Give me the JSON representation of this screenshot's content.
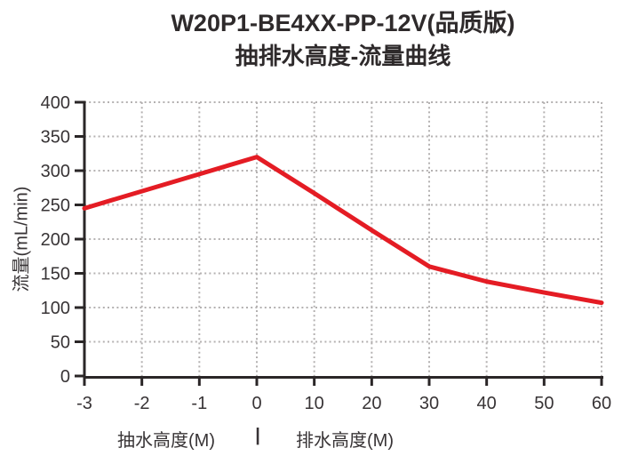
{
  "title": {
    "line1": "W20P1-BE4XX-PP-12V(品质版)",
    "line2": "抽排水高度-流量曲线"
  },
  "chart_data": {
    "type": "line",
    "title": "W20P1-BE4XX-PP-12V(品质版) 抽排水高度-流量曲线",
    "x_tick_labels": [
      "-3",
      "-2",
      "-1",
      "0",
      "10",
      "20",
      "30",
      "40",
      "50",
      "60"
    ],
    "y_ticks": [
      0,
      50,
      100,
      150,
      200,
      250,
      300,
      350,
      400
    ],
    "ylim": [
      0,
      400
    ],
    "series": [
      {
        "name": "流量",
        "values": [
          245,
          270,
          295,
          320,
          267,
          213,
          160,
          138,
          122,
          107
        ]
      }
    ],
    "ylabel": "流量(mL/min)",
    "xlabel_left": "抽水高度(M)",
    "xlabel_sep": "|",
    "xlabel_right": "排水高度(M)",
    "grid": true,
    "legend": false,
    "line_color": "#e41c24",
    "grid_color": "#b4b1b1",
    "axis_color": "#2a2627",
    "text_color": "#383436"
  }
}
